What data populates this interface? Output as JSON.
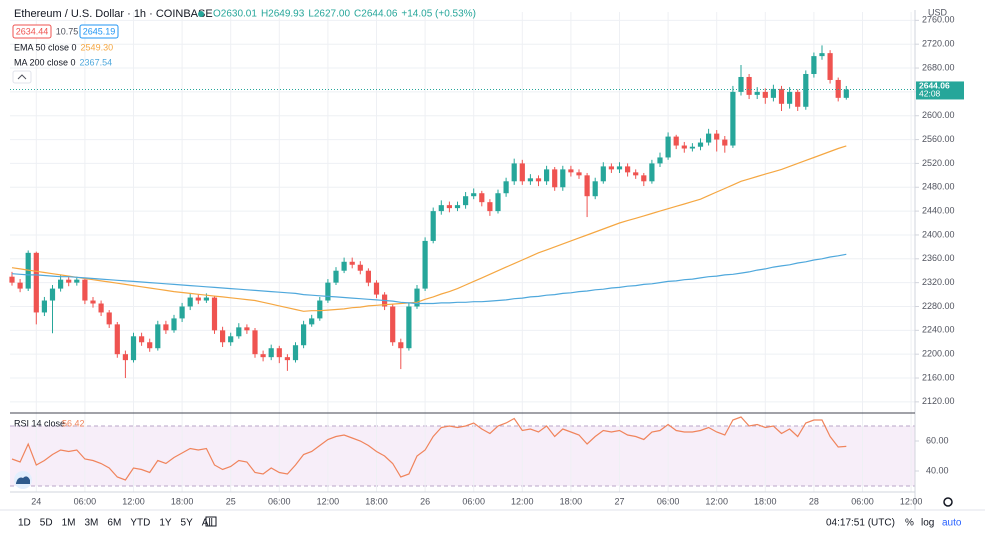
{
  "header": {
    "symbol": "Ethereum / U.S. Dollar · 1h · COINBASE",
    "ohlc": [
      "O2630.01",
      "H2649.93",
      "L2627.00",
      "C2644.06",
      "+14.05 (+0.53%)"
    ],
    "bid": "2634.44",
    "spread": "10.75",
    "ask": "2645.19",
    "currency": "USD",
    "countdown": "42:08"
  },
  "toolbar": {
    "ranges": [
      "1D",
      "5D",
      "1M",
      "3M",
      "6M",
      "YTD",
      "1Y",
      "5Y",
      "All"
    ],
    "clock": "04:17:51 (UTC)",
    "options": [
      "%",
      "log",
      "auto"
    ]
  },
  "chart_data": {
    "type": "candlestick",
    "up_color": "#26a69a",
    "down_color": "#ef5350",
    "grid": true,
    "categories": [
      null,
      null,
      null,
      "24",
      null,
      null,
      null,
      null,
      null,
      "06:00",
      null,
      null,
      null,
      null,
      null,
      "12:00",
      null,
      null,
      null,
      null,
      null,
      "18:00",
      null,
      null,
      null,
      null,
      null,
      "25",
      null,
      null,
      null,
      null,
      null,
      "06:00",
      null,
      null,
      null,
      null,
      null,
      "12:00",
      null,
      null,
      null,
      null,
      null,
      "18:00",
      null,
      null,
      null,
      null,
      null,
      "26",
      null,
      null,
      null,
      null,
      null,
      "06:00",
      null,
      null,
      null,
      null,
      null,
      "12:00",
      null,
      null,
      null,
      null,
      null,
      "18:00",
      null,
      null,
      null,
      null,
      null,
      "27",
      null,
      null,
      null,
      null,
      null,
      "06:00",
      null,
      null,
      null,
      null,
      null,
      "12:00",
      null,
      null,
      null,
      null,
      null,
      "18:00",
      null,
      null,
      null,
      null,
      null,
      "28",
      null,
      null,
      null,
      null
    ],
    "future_categories": [
      "06:00",
      "12:00"
    ],
    "open": [
      2330,
      2320,
      2310,
      2370,
      2270,
      2290,
      2310,
      2325,
      2320,
      2325,
      2290,
      2285,
      2270,
      2250,
      2200,
      2190,
      2230,
      2220,
      2210,
      2250,
      2240,
      2260,
      2280,
      2295,
      2290,
      2295,
      2240,
      2220,
      2230,
      2245,
      2240,
      2200,
      2195,
      2210,
      2195,
      2190,
      2215,
      2250,
      2260,
      2290,
      2320,
      2340,
      2355,
      2350,
      2340,
      2320,
      2300,
      2280,
      2220,
      2210,
      2280,
      2310,
      2390,
      2440,
      2450,
      2445,
      2450,
      2465,
      2470,
      2455,
      2440,
      2470,
      2490,
      2520,
      2490,
      2495,
      2490,
      2510,
      2480,
      2510,
      2505,
      2500,
      2465,
      2490,
      2515,
      2510,
      2515,
      2505,
      2500,
      2490,
      2520,
      2530,
      2565,
      2550,
      2545,
      2548,
      2555,
      2570,
      2560,
      2550,
      2640,
      2665,
      2635,
      2640,
      2630,
      2645,
      2620,
      2640,
      2615,
      2670,
      2700,
      2705,
      2660,
      2630.01
    ],
    "high": [
      2338,
      2326,
      2374,
      2372,
      2296,
      2316,
      2332,
      2330,
      2330,
      2328,
      2296,
      2290,
      2274,
      2254,
      2206,
      2236,
      2236,
      2226,
      2256,
      2256,
      2266,
      2286,
      2302,
      2300,
      2302,
      2298,
      2246,
      2236,
      2252,
      2250,
      2244,
      2206,
      2216,
      2214,
      2200,
      2220,
      2256,
      2266,
      2296,
      2326,
      2346,
      2362,
      2362,
      2356,
      2344,
      2324,
      2304,
      2284,
      2226,
      2286,
      2316,
      2396,
      2446,
      2458,
      2456,
      2456,
      2472,
      2478,
      2474,
      2460,
      2476,
      2496,
      2528,
      2526,
      2502,
      2500,
      2516,
      2514,
      2516,
      2516,
      2510,
      2504,
      2496,
      2522,
      2520,
      2522,
      2520,
      2510,
      2504,
      2526,
      2538,
      2572,
      2568,
      2556,
      2554,
      2562,
      2578,
      2576,
      2566,
      2650,
      2685,
      2670,
      2648,
      2646,
      2652,
      2650,
      2648,
      2644,
      2676,
      2706,
      2718,
      2710,
      2664,
      2649.93
    ],
    "low": [
      2315,
      2304,
      2306,
      2250,
      2264,
      2235,
      2305,
      2314,
      2315,
      2284,
      2278,
      2264,
      2244,
      2194,
      2160,
      2186,
      2214,
      2204,
      2206,
      2234,
      2236,
      2254,
      2274,
      2284,
      2286,
      2234,
      2212,
      2214,
      2226,
      2234,
      2194,
      2188,
      2190,
      2185,
      2172,
      2186,
      2210,
      2246,
      2256,
      2286,
      2316,
      2336,
      2344,
      2334,
      2314,
      2294,
      2274,
      2214,
      2175,
      2206,
      2276,
      2306,
      2386,
      2434,
      2438,
      2440,
      2444,
      2460,
      2448,
      2432,
      2436,
      2464,
      2484,
      2484,
      2484,
      2482,
      2484,
      2474,
      2474,
      2498,
      2494,
      2430,
      2460,
      2486,
      2504,
      2504,
      2498,
      2494,
      2482,
      2486,
      2514,
      2526,
      2544,
      2538,
      2540,
      2542,
      2550,
      2540,
      2538,
      2546,
      2634,
      2628,
      2628,
      2620,
      2624,
      2608,
      2612,
      2608,
      2610,
      2664,
      2694,
      2654,
      2624,
      2627
    ],
    "close": [
      2320,
      2310,
      2370,
      2270,
      2290,
      2310,
      2325,
      2320,
      2325,
      2290,
      2285,
      2270,
      2250,
      2200,
      2190,
      2230,
      2220,
      2210,
      2250,
      2240,
      2260,
      2280,
      2295,
      2290,
      2295,
      2240,
      2220,
      2230,
      2245,
      2240,
      2200,
      2195,
      2210,
      2195,
      2190,
      2215,
      2250,
      2260,
      2290,
      2320,
      2340,
      2355,
      2350,
      2340,
      2320,
      2300,
      2280,
      2220,
      2210,
      2280,
      2310,
      2390,
      2440,
      2450,
      2445,
      2450,
      2465,
      2470,
      2455,
      2440,
      2470,
      2490,
      2520,
      2490,
      2495,
      2490,
      2510,
      2480,
      2510,
      2505,
      2500,
      2465,
      2490,
      2515,
      2510,
      2515,
      2505,
      2500,
      2490,
      2520,
      2530,
      2565,
      2550,
      2545,
      2548,
      2555,
      2570,
      2560,
      2550,
      2640,
      2665,
      2635,
      2640,
      2630,
      2645,
      2620,
      2640,
      2615,
      2670,
      2700,
      2705,
      2660,
      2630.01,
      2644.06
    ],
    "overlays": [
      {
        "name": "EMA 50 close 0",
        "color": "#f5a742",
        "last_label": "2549.30",
        "values": [
          2345,
          2343,
          2341,
          2339,
          2337,
          2335,
          2333,
          2331,
          2329,
          2327,
          2325,
          2323,
          2321,
          2319,
          2317,
          2315,
          2313,
          2311,
          2309,
          2307,
          2305,
          2303.5,
          2302,
          2300.5,
          2299,
          2297.5,
          2296,
          2294.5,
          2293,
          2291.5,
          2290,
          2287,
          2284,
          2281,
          2278,
          2275,
          2272,
          2273,
          2273,
          2274,
          2275,
          2276,
          2278,
          2279,
          2281,
          2282,
          2283,
          2284,
          2285,
          2286,
          2287,
          2292,
          2296,
          2301,
          2305,
          2310,
          2316,
          2322,
          2328,
          2334,
          2340,
          2346,
          2352,
          2358,
          2364,
          2370,
          2375,
          2380,
          2385,
          2390,
          2395,
          2400,
          2405,
          2410,
          2415,
          2420,
          2424,
          2428,
          2432,
          2436,
          2440,
          2444,
          2448,
          2452,
          2456,
          2460,
          2466,
          2472,
          2478,
          2484,
          2490,
          2494,
          2498,
          2502,
          2506,
          2510,
          2515,
          2520,
          2525,
          2530,
          2535,
          2540,
          2545,
          2549.3
        ]
      },
      {
        "name": "MA 200 close 0",
        "color": "#4fa8dc",
        "last_label": "2367.54",
        "values": [
          2335,
          2334,
          2333,
          2333,
          2332,
          2331,
          2330,
          2330,
          2329,
          2328,
          2327,
          2326,
          2325,
          2324,
          2323,
          2322,
          2321,
          2320,
          2319,
          2318,
          2317,
          2316,
          2315,
          2314,
          2313,
          2312,
          2311,
          2310,
          2309,
          2308,
          2307,
          2306,
          2305,
          2304,
          2303,
          2302,
          2300,
          2299,
          2298,
          2297,
          2296,
          2295,
          2294,
          2293,
          2292,
          2291,
          2290,
          2289,
          2287,
          2286,
          2285,
          2285,
          2285,
          2286,
          2286,
          2287,
          2287,
          2288,
          2288,
          2289,
          2290,
          2291,
          2293,
          2294,
          2296,
          2297,
          2299,
          2300,
          2302,
          2303,
          2305,
          2306,
          2308,
          2309,
          2311,
          2312,
          2314,
          2315,
          2317,
          2318,
          2320,
          2322,
          2323,
          2325,
          2326,
          2328,
          2330,
          2331,
          2333,
          2334,
          2336,
          2338,
          2341,
          2343,
          2346,
          2348,
          2350,
          2353,
          2355,
          2358,
          2360,
          2363,
          2365,
          2367.54
        ]
      }
    ],
    "ylim": [
      2103,
      2774
    ],
    "yticks": [
      {
        "value": 2120,
        "label": "2120.00"
      },
      {
        "value": 2160,
        "label": "2160.00"
      },
      {
        "value": 2200,
        "label": "2200.00"
      },
      {
        "value": 2240,
        "label": "2240.00"
      },
      {
        "value": 2280,
        "label": "2280.00"
      },
      {
        "value": 2320,
        "label": "2320.00"
      },
      {
        "value": 2360,
        "label": "2360.00"
      },
      {
        "value": 2400,
        "label": "2400.00"
      },
      {
        "value": 2440,
        "label": "2440.00"
      },
      {
        "value": 2480,
        "label": "2480.00"
      },
      {
        "value": 2520,
        "label": "2520.00"
      },
      {
        "value": 2560,
        "label": "2560.00"
      },
      {
        "value": 2600,
        "label": "2600.00"
      },
      {
        "value": 2640,
        "label": "2640.00"
      },
      {
        "value": 2680,
        "label": "2680.00"
      },
      {
        "value": 2720,
        "label": "2720.00"
      },
      {
        "value": 2760,
        "label": "2760.00"
      }
    ],
    "rsi": {
      "name": "RSI 14 close",
      "color": "#f0845c",
      "band_color": "#9c27b0",
      "last_label": "56.42",
      "band": [
        30,
        70
      ],
      "ylim": [
        26,
        78
      ],
      "yticks": [
        {
          "value": 40,
          "label": "40.00"
        },
        {
          "value": 60,
          "label": "60.00"
        }
      ],
      "values": [
        48,
        46,
        58,
        44,
        47,
        51,
        54,
        53,
        54,
        48,
        47,
        45,
        42,
        36,
        34,
        42,
        41,
        39,
        47,
        45,
        49,
        52,
        55,
        54,
        55,
        44,
        41,
        43,
        47,
        46,
        39,
        38,
        42,
        39,
        38,
        44,
        51,
        53,
        57,
        61,
        63,
        64,
        62,
        60,
        57,
        53,
        50,
        45,
        36,
        38,
        50,
        54,
        63,
        69,
        70,
        69,
        70,
        72,
        68,
        65,
        70,
        72,
        75,
        67,
        68,
        66,
        70,
        63,
        68,
        66,
        64,
        58,
        63,
        67,
        66,
        67,
        64,
        63,
        61,
        66,
        67,
        71,
        67,
        66,
        66,
        67,
        69,
        66,
        64,
        74,
        76,
        70,
        71,
        69,
        70,
        65,
        68,
        63,
        72,
        74,
        74,
        63,
        56,
        56.42
      ]
    }
  }
}
